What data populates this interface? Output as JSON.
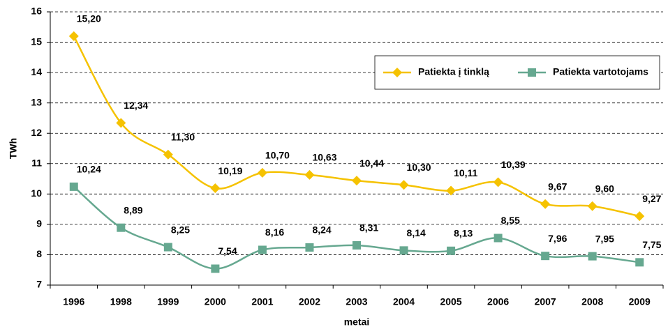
{
  "chart_data": {
    "type": "line",
    "y_label": "TWh",
    "x_label": "metai",
    "categories": [
      "1996",
      "1998",
      "1999",
      "2000",
      "2001",
      "2002",
      "2003",
      "2004",
      "2005",
      "2006",
      "2007",
      "2008",
      "2009"
    ],
    "series": [
      {
        "name": "Patiekta į tinklą",
        "color": "#f5c200",
        "marker": "diamond",
        "values": [
          15.2,
          12.34,
          11.3,
          10.19,
          10.7,
          10.63,
          10.44,
          10.3,
          10.11,
          10.39,
          9.67,
          9.6,
          9.27
        ],
        "value_labels": [
          "15,20",
          "12,34",
          "11,30",
          "10,19",
          "10,70",
          "10,63",
          "10,44",
          "10,30",
          "10,11",
          "10,39",
          "9,67",
          "9,60",
          "9,27"
        ]
      },
      {
        "name": "Patiekta vartotojams",
        "color": "#66a890",
        "marker": "square",
        "values": [
          10.24,
          8.89,
          8.25,
          7.54,
          8.16,
          8.24,
          8.31,
          8.14,
          8.13,
          8.55,
          7.96,
          7.95,
          7.75
        ],
        "value_labels": [
          "10,24",
          "8,89",
          "8,25",
          "7,54",
          "8,16",
          "8,24",
          "8,31",
          "8,14",
          "8,13",
          "8,55",
          "7,96",
          "7,95",
          "7,75"
        ]
      }
    ],
    "ylim": [
      7,
      16
    ],
    "yticks": [
      7,
      8,
      9,
      10,
      11,
      12,
      13,
      14,
      15,
      16
    ],
    "grid": true,
    "smooth": true,
    "legend": "upper right"
  }
}
